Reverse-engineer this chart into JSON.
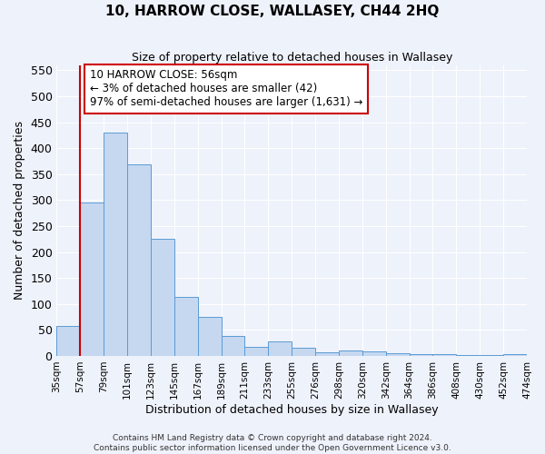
{
  "title": "10, HARROW CLOSE, WALLASEY, CH44 2HQ",
  "subtitle": "Size of property relative to detached houses in Wallasey",
  "xlabel": "Distribution of detached houses by size in Wallasey",
  "ylabel": "Number of detached properties",
  "bar_values": [
    57,
    295,
    430,
    368,
    225,
    113,
    75,
    39,
    18,
    28,
    15,
    7,
    10,
    8,
    5,
    3,
    4,
    2,
    1,
    4
  ],
  "bin_labels": [
    "35sqm",
    "57sqm",
    "79sqm",
    "101sqm",
    "123sqm",
    "145sqm",
    "167sqm",
    "189sqm",
    "211sqm",
    "233sqm",
    "255sqm",
    "276sqm",
    "298sqm",
    "320sqm",
    "342sqm",
    "364sqm",
    "386sqm",
    "408sqm",
    "430sqm",
    "452sqm",
    "474sqm"
  ],
  "bar_color": "#c5d8f0",
  "bar_edge_color": "#5b9bd5",
  "vline_x": 1,
  "vline_color": "#cc0000",
  "annotation_line1": "10 HARROW CLOSE: 56sqm",
  "annotation_line2": "← 3% of detached houses are smaller (42)",
  "annotation_line3": "97% of semi-detached houses are larger (1,631) →",
  "annotation_box_edgecolor": "#cc0000",
  "ylim": [
    0,
    560
  ],
  "yticks": [
    0,
    50,
    100,
    150,
    200,
    250,
    300,
    350,
    400,
    450,
    500,
    550
  ],
  "footer_line1": "Contains HM Land Registry data © Crown copyright and database right 2024.",
  "footer_line2": "Contains public sector information licensed under the Open Government Licence v3.0.",
  "bg_color": "#eef2fb",
  "plot_bg_color": "#eef2fb",
  "grid_color": "#ffffff",
  "title_fontsize": 11,
  "subtitle_fontsize": 9,
  "ylabel_fontsize": 9,
  "xlabel_fontsize": 9,
  "ytick_fontsize": 9,
  "xtick_fontsize": 7.5
}
